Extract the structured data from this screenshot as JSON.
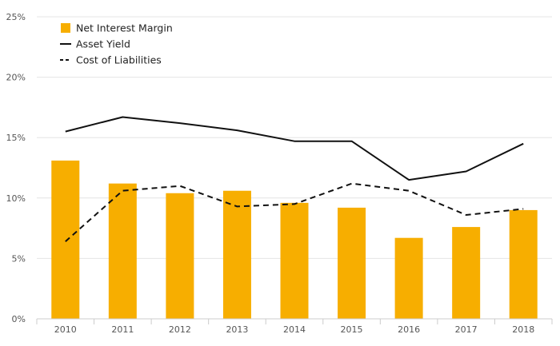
{
  "chart_data": {
    "type": "bar",
    "categories": [
      "2010",
      "2011",
      "2012",
      "2013",
      "2014",
      "2015",
      "2016",
      "2017",
      "2018"
    ],
    "series": [
      {
        "name": "Net Interest Margin",
        "type": "bar",
        "color": "#f7ae00",
        "values": [
          13.1,
          11.2,
          10.4,
          10.6,
          9.6,
          9.2,
          6.7,
          7.6,
          9.0
        ]
      },
      {
        "name": "Asset Yield",
        "type": "line",
        "style": "solid",
        "color": "#111111",
        "values": [
          15.5,
          16.7,
          16.2,
          15.6,
          14.7,
          14.7,
          11.5,
          12.2,
          14.5
        ]
      },
      {
        "name": "Cost of Liabilities",
        "type": "line",
        "style": "dashed",
        "color": "#111111",
        "values": [
          6.4,
          10.6,
          11.0,
          9.3,
          9.5,
          11.2,
          10.6,
          8.6,
          9.1
        ]
      }
    ],
    "yticks": [
      "0%",
      "5%",
      "10%",
      "15%",
      "20%",
      "25%"
    ],
    "ytick_values": [
      0,
      5,
      10,
      15,
      20,
      25
    ],
    "ylim": [
      0,
      25
    ],
    "grid": true,
    "legend_position": "top-left"
  }
}
